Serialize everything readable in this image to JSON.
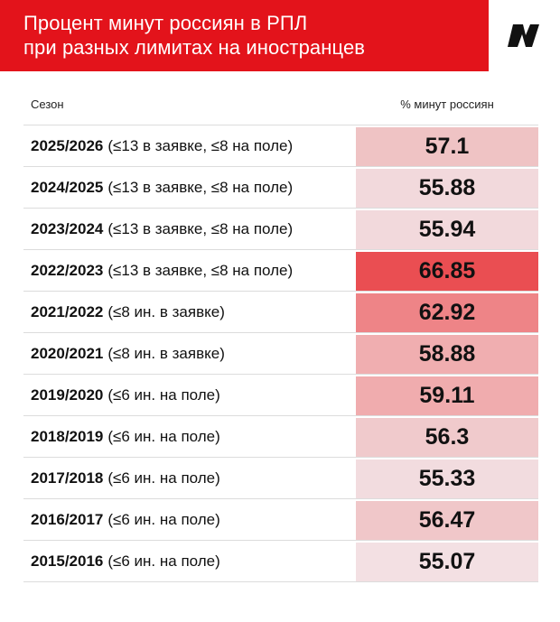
{
  "header": {
    "title": "Процент минут россиян в РПЛ\nпри разных лимитах на иностранцев",
    "brand_color": "#e3131b",
    "logo_icon": "sports-ru-logo-icon"
  },
  "table": {
    "season_header": "Сезон",
    "value_header": "% минут россиян"
  },
  "chart_data": {
    "type": "table",
    "columns": [
      "Сезон",
      "% минут россиян"
    ],
    "rows": [
      {
        "season": "2025/2026",
        "limit": "(≤13 в заявке, ≤8 на поле)",
        "value": 57.1,
        "display": "57.1",
        "color": "#efc3c4"
      },
      {
        "season": "2024/2025",
        "limit": "(≤13 в заявке, ≤8 на поле)",
        "value": 55.88,
        "display": "55.88",
        "color": "#f2d9dc"
      },
      {
        "season": "2023/2024",
        "limit": "(≤13 в заявке, ≤8 на поле)",
        "value": 55.94,
        "display": "55.94",
        "color": "#f2d9dc"
      },
      {
        "season": "2022/2023",
        "limit": "(≤13 в заявке, ≤8 на поле)",
        "value": 66.85,
        "display": "66.85",
        "color": "#ea4e52"
      },
      {
        "season": "2021/2022",
        "limit": "(≤8 ин. в заявке)",
        "value": 62.92,
        "display": "62.92",
        "color": "#ee8487"
      },
      {
        "season": "2020/2021",
        "limit": "(≤8 ин. в заявке)",
        "value": 58.88,
        "display": "58.88",
        "color": "#f0aeb0"
      },
      {
        "season": "2019/2020",
        "limit": "(≤6 ин. на поле)",
        "value": 59.11,
        "display": "59.11",
        "color": "#f0acae"
      },
      {
        "season": "2018/2019",
        "limit": "(≤6 ин. на поле)",
        "value": 56.3,
        "display": "56.3",
        "color": "#f0cacc"
      },
      {
        "season": "2017/2018",
        "limit": "(≤6 ин. на поле)",
        "value": 55.33,
        "display": "55.33",
        "color": "#f2dcdf"
      },
      {
        "season": "2016/2017",
        "limit": "(≤6 ин. на поле)",
        "value": 56.47,
        "display": "56.47",
        "color": "#f0c7c9"
      },
      {
        "season": "2015/2016",
        "limit": "(≤6 ин. на поле)",
        "value": 55.07,
        "display": "55.07",
        "color": "#f3e0e3"
      }
    ]
  }
}
